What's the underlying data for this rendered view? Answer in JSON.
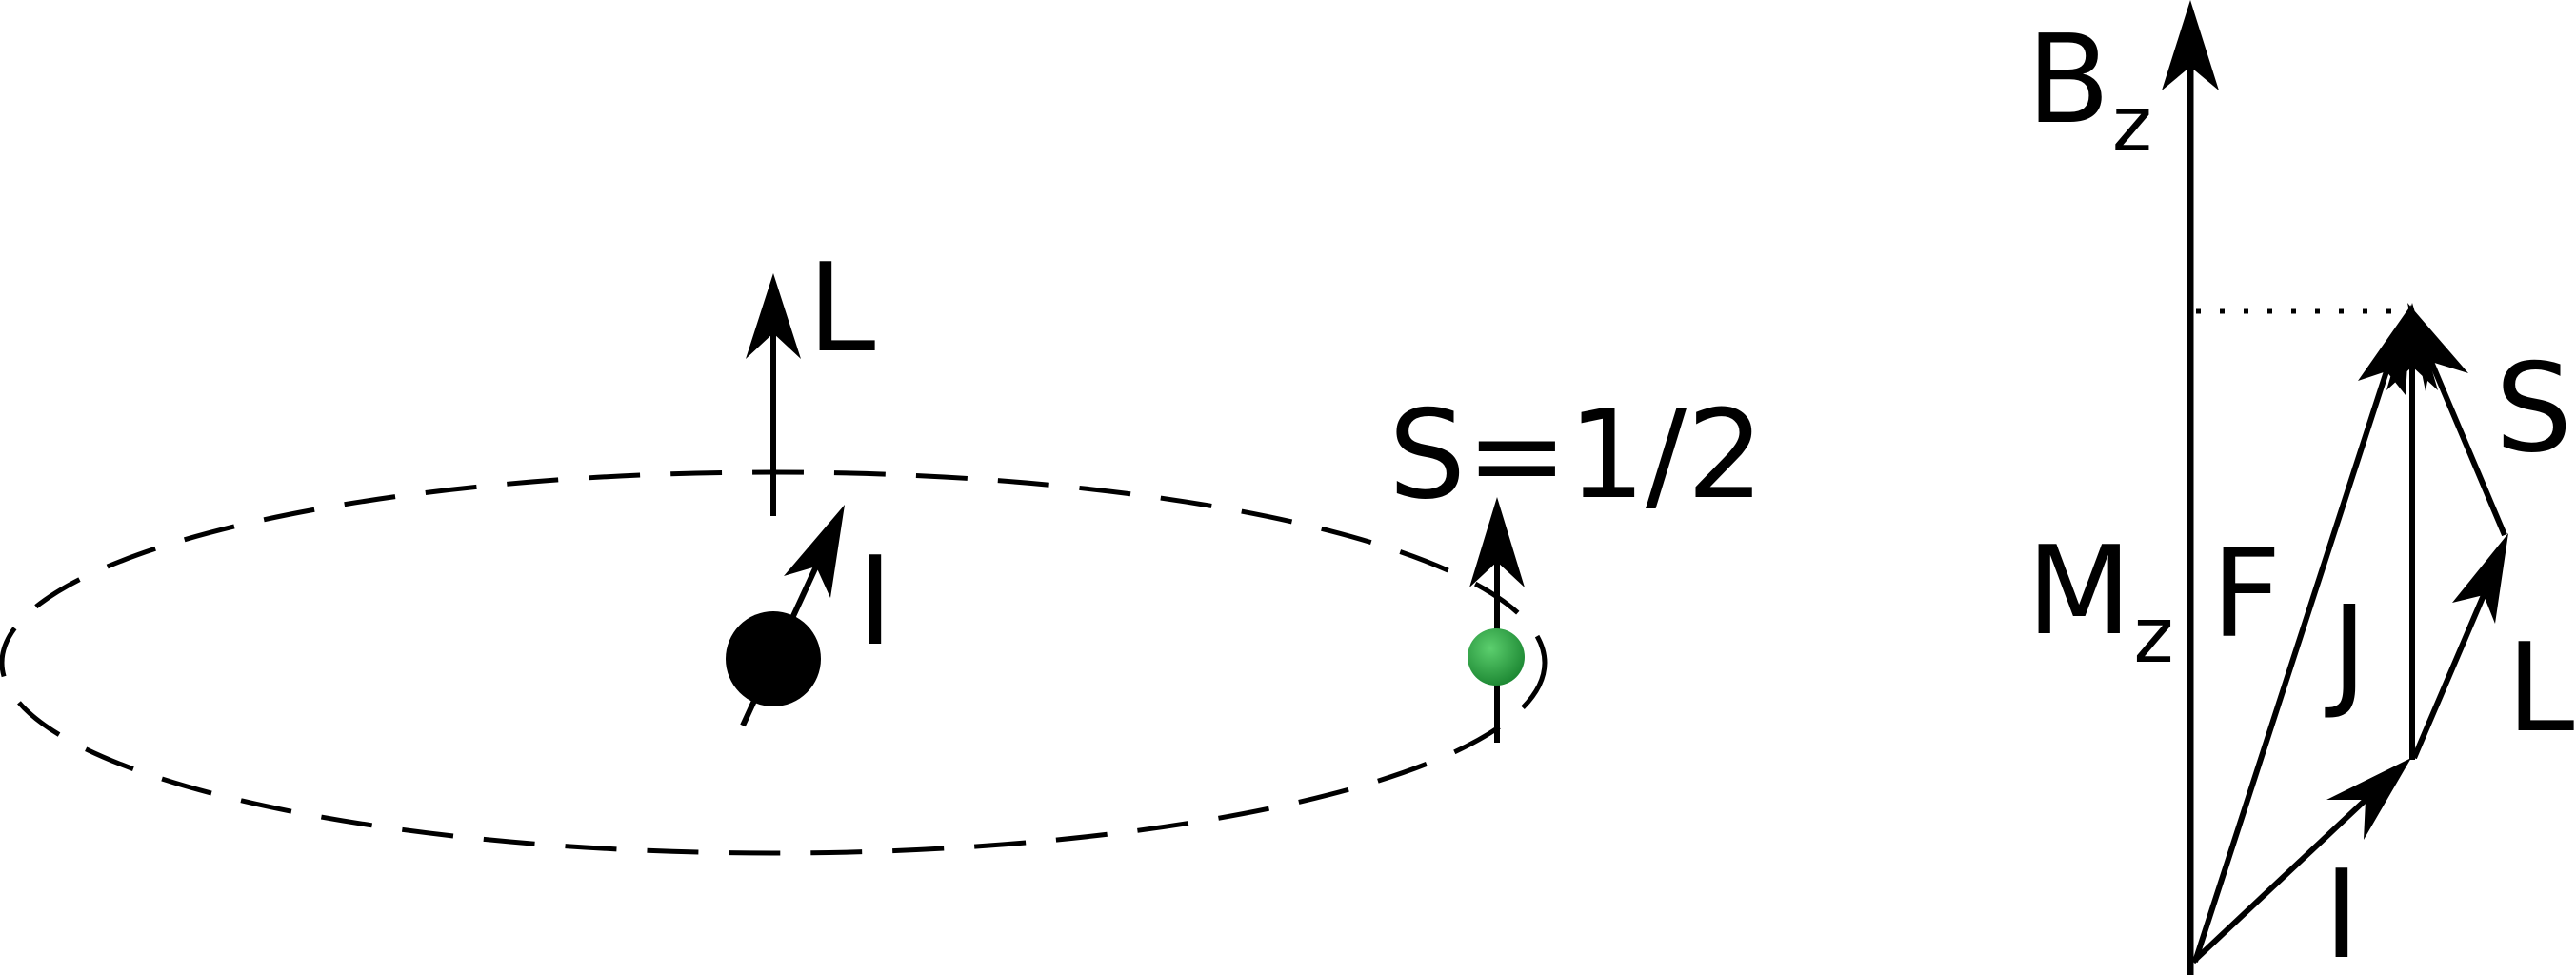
{
  "left_panel": {
    "orbital_label": "L",
    "nuclear_spin_label": "I",
    "electron_spin_label": "S=1/2",
    "electron_color": "#2e9e44"
  },
  "right_panel": {
    "field_label": "B",
    "field_subscript": "z",
    "projection_label": "M",
    "projection_subscript": "z",
    "f_label": "F",
    "j_label": "J",
    "s_label": "S",
    "l_label": "L",
    "i_label": "I"
  }
}
